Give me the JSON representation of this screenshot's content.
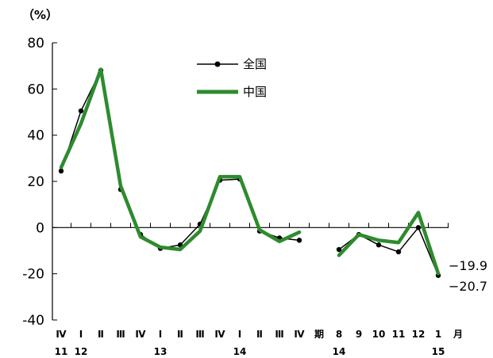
{
  "chart_data": {
    "type": "line",
    "unit_label": "（%）",
    "ylim": [
      -40,
      80
    ],
    "yticks": [
      80,
      60,
      40,
      20,
      0,
      -20,
      -40
    ],
    "categories": [
      "Ⅳ",
      "Ⅰ",
      "Ⅱ",
      "Ⅲ",
      "Ⅳ",
      "Ⅰ",
      "Ⅱ",
      "Ⅲ",
      "Ⅳ",
      "Ⅰ",
      "Ⅱ",
      "Ⅲ",
      "Ⅳ",
      "期",
      "8",
      "9",
      "10",
      "11",
      "12",
      "1",
      "月"
    ],
    "year_labels": [
      {
        "at": "Ⅳ",
        "index": 0,
        "text": "11"
      },
      {
        "at": "Ⅰ",
        "index": 1,
        "text": "12"
      },
      {
        "at": "Ⅰ",
        "index": 5,
        "text": "13"
      },
      {
        "at": "Ⅰ",
        "index": 9,
        "text": "14"
      },
      {
        "at": "期",
        "index": 14,
        "text": "14"
      },
      {
        "at": "1",
        "index": 19,
        "text": "15"
      }
    ],
    "series": [
      {
        "name": "全国",
        "color": "#000000",
        "marker": "dot",
        "values": [
          24.5,
          50.5,
          68,
          16.5,
          -3,
          -9,
          -7.5,
          1.5,
          20.5,
          21,
          -1.5,
          -4.5,
          -5.5,
          null,
          -9.5,
          -3,
          -7.5,
          -10.5,
          0,
          -20.7,
          null
        ]
      },
      {
        "name": "中国",
        "color": "#2e8b2e",
        "marker": "none",
        "values": [
          26,
          45,
          68.5,
          18,
          -4,
          -8.5,
          -9.5,
          -1.5,
          22,
          22,
          -1,
          -6,
          -2,
          null,
          -12,
          -3,
          -5.5,
          -6.5,
          6.5,
          -19.9,
          null
        ]
      }
    ],
    "annotations": [
      "−19.9",
      "−20.7"
    ],
    "grid": false,
    "legend": "top-center"
  }
}
